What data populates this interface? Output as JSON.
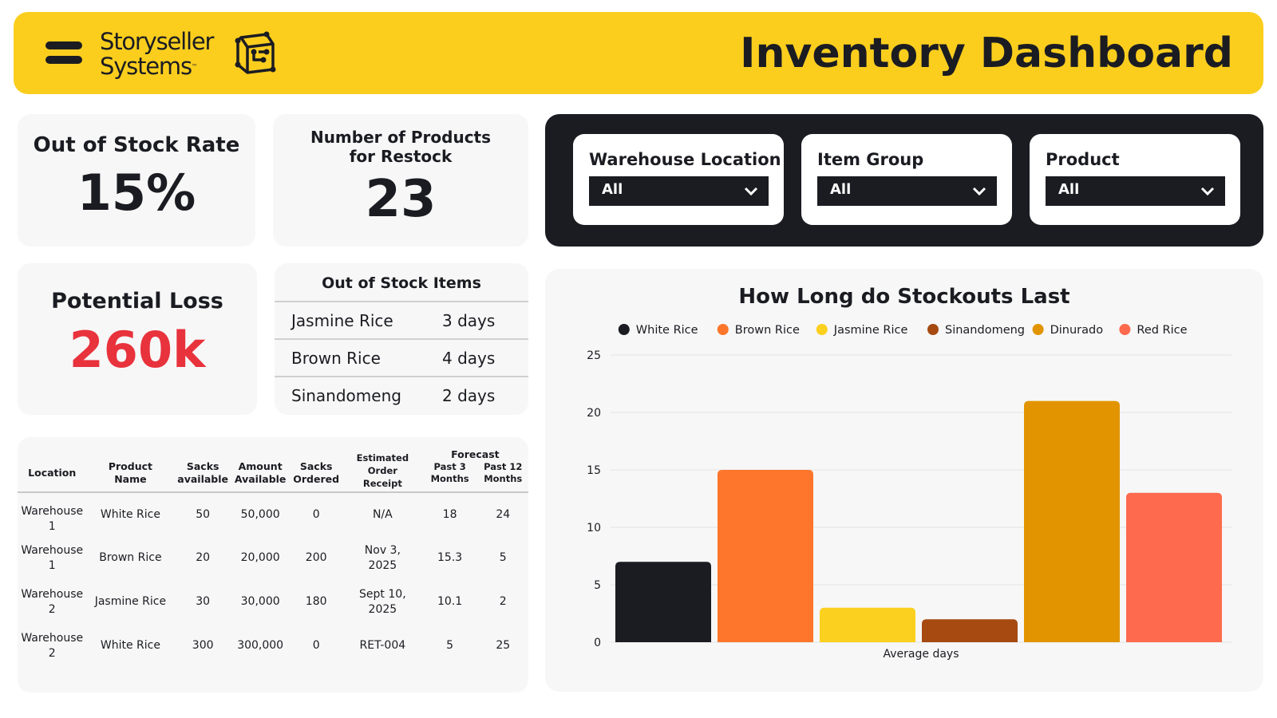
{
  "header": {
    "menu_icon": "hamburger-icon",
    "logo_line1": "Storyseller",
    "logo_line2": "Systems",
    "logo_tm": "™",
    "logo_icon": "circuit-cube-icon",
    "title": "Inventory Dashboard",
    "accent_color": "#fbce1e",
    "dark_color": "#1b1c22"
  },
  "kpis": {
    "oos_rate_label": "Out of Stock Rate",
    "oos_rate_value": "15%",
    "restock_label_line1": "Number of Products",
    "restock_label_line2": "for Restock",
    "restock_value": "23",
    "loss_label": "Potential Loss",
    "loss_value": "260k",
    "loss_color": "#e8323c"
  },
  "filters": [
    {
      "label": "Warehouse Location",
      "value": "All"
    },
    {
      "label": "Item Group",
      "value": "All"
    },
    {
      "label": "Product",
      "value": "All"
    }
  ],
  "out_of_stock_items": {
    "title": "Out of Stock Items",
    "rows": [
      {
        "name": "Jasmine Rice",
        "days": "3 days"
      },
      {
        "name": "Brown Rice",
        "days": "4 days"
      },
      {
        "name": "Sinandomeng",
        "days": "2 days"
      }
    ]
  },
  "inventory_table": {
    "headers": {
      "location": "Location",
      "product_name": "Product Name",
      "sacks_available": "Sacks available",
      "amount_available": "Amount Available",
      "sacks_ordered": "Sacks Ordered",
      "estimated_receipt": "Estimated Order Receipt",
      "forecast": "Forecast",
      "past3": "Past 3 Months",
      "past12": "Past 12 Months"
    },
    "rows": [
      {
        "location": "Warehouse 1",
        "product": "White Rice",
        "sacks": "50",
        "amount": "50,000",
        "ordered": "0",
        "receipt": "N/A",
        "past3": "18",
        "past12": "24"
      },
      {
        "location": "Warehouse 1",
        "product": "Brown Rice",
        "sacks": "20",
        "amount": "20,000",
        "ordered": "200",
        "receipt": "Nov 3, 2025",
        "past3": "15.3",
        "past12": "5"
      },
      {
        "location": "Warehouse 2",
        "product": "Jasmine Rice",
        "sacks": "30",
        "amount": "30,000",
        "ordered": "180",
        "receipt": "Sept 10, 2025",
        "past3": "10.1",
        "past12": "2"
      },
      {
        "location": "Warehouse 2",
        "product": "White Rice",
        "sacks": "300",
        "amount": "300,000",
        "ordered": "0",
        "receipt": "RET-004",
        "past3": "5",
        "past12": "25"
      }
    ]
  },
  "chart_data": {
    "type": "bar",
    "title": "How Long do Stockouts Last",
    "xlabel": "Average days",
    "ylabel": "",
    "categories": [
      "Average days"
    ],
    "ylim": [
      0,
      25
    ],
    "yticks": [
      0,
      5,
      10,
      15,
      20,
      25
    ],
    "grid": true,
    "legend_position": "top",
    "series": [
      {
        "name": "White Rice",
        "values": [
          7
        ],
        "color": "#1b1c22"
      },
      {
        "name": "Brown Rice",
        "values": [
          15
        ],
        "color": "#fd762b"
      },
      {
        "name": "Jasmine Rice",
        "values": [
          3
        ],
        "color": "#fcd01f"
      },
      {
        "name": "Sinandomeng",
        "values": [
          2
        ],
        "color": "#a64a12"
      },
      {
        "name": "Dinurado",
        "values": [
          21
        ],
        "color": "#e29400"
      },
      {
        "name": "Red Rice",
        "values": [
          13
        ],
        "color": "#fe6a4d"
      }
    ]
  }
}
